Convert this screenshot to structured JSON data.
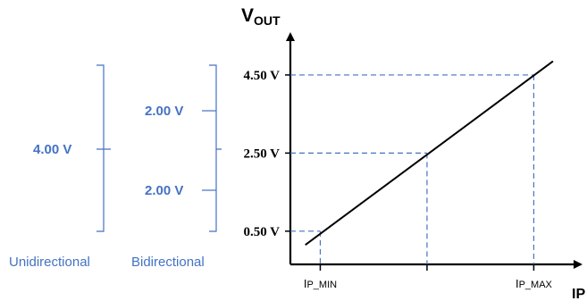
{
  "colors": {
    "accent_blue": "#4472c4",
    "line": "#000000",
    "axis": "#000000"
  },
  "chart_data": {
    "type": "line",
    "title": "",
    "xlabel": "IP",
    "ylabel": "VOUT",
    "ylabel_main": "V",
    "ylabel_sub": "OUT",
    "y_ticks": [
      {
        "value": 0.5,
        "label": "0.50 V"
      },
      {
        "value": 2.5,
        "label": "2.50 V"
      },
      {
        "value": 4.5,
        "label": "4.50 V"
      }
    ],
    "x_ticks": [
      {
        "value": 0,
        "label": "IP_MIN",
        "main": "I",
        "sub": "P_MIN"
      },
      {
        "value": 0.5,
        "label": "",
        "main": "",
        "sub": ""
      },
      {
        "value": 1,
        "label": "IP_MAX",
        "main": "I",
        "sub": "P_MAX"
      }
    ],
    "series": [
      {
        "x": [
          -0.07,
          1.09
        ],
        "y": [
          0.15,
          4.85
        ]
      }
    ],
    "guide_points": [
      {
        "x": 0,
        "y": 0.5
      },
      {
        "x": 0.5,
        "y": 2.5
      },
      {
        "x": 1,
        "y": 4.5
      }
    ],
    "xlim": [
      -0.14,
      1.22
    ],
    "ylim": [
      -0.35,
      5.55
    ],
    "grid": false
  },
  "ranges": {
    "unidirectional": {
      "value_label": "4.00 V",
      "caption": "Unidirectional"
    },
    "bidirectional": {
      "upper_label": "2.00 V",
      "lower_label": "2.00 V",
      "caption": "Bidirectional"
    }
  }
}
